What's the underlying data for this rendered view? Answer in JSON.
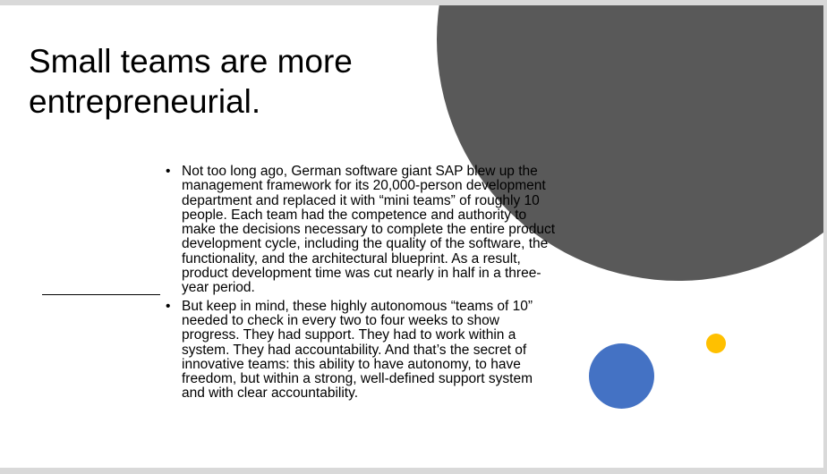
{
  "slide": {
    "title": "Small teams are more entrepreneurial.",
    "bullets": [
      {
        "marker": "•",
        "text": "Not too long ago, German software giant SAP blew up the management framework for its 20,000-person development department and replaced it with “mini teams” of roughly 10 people. Each team had the competence and authority to make the decisions necessary to complete the entire product development cycle, including the quality of the software, the functionality, and the architectural blueprint. As a result, product development time was cut nearly in half in a three-year period."
      },
      {
        "marker": "•",
        "text": "But keep in mind, these highly autonomous “teams of 10” needed to check in every two to four weeks to show progress. They had support. They had to work within a system. They had accountability. And that’s the secret of innovative teams: this ability to have autonomy, to have freedom, but within a strong, well-defined support system and with clear accountability."
      }
    ]
  },
  "colors": {
    "large_circle": "#595959",
    "blue_circle": "#4472c4",
    "yellow_circle": "#ffc000"
  }
}
